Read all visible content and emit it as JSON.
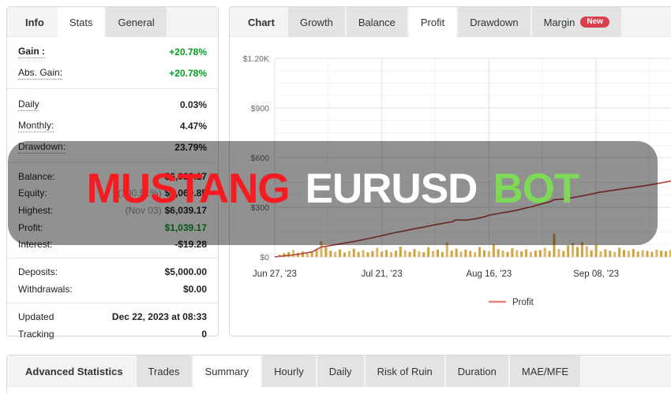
{
  "left_panel": {
    "tabs": [
      {
        "label": "Info",
        "state": "label"
      },
      {
        "label": "Stats",
        "state": "active"
      },
      {
        "label": "General",
        "state": "inactive"
      }
    ],
    "sections": [
      {
        "rows": [
          {
            "label": "Gain :",
            "value": "+20.78%",
            "value_color": "green",
            "underline": true,
            "bold_label": true
          },
          {
            "label": "Abs. Gain:",
            "value": "+20.78%",
            "value_color": "green",
            "underline": true
          }
        ]
      },
      {
        "rows": [
          {
            "label": "Daily",
            "value": "0.03%",
            "underline": true
          },
          {
            "label": "Monthly:",
            "value": "4.47%",
            "underline": true
          },
          {
            "label": "Drawdown:",
            "value": "23.79%",
            "underline": true
          }
        ]
      },
      {
        "rows": [
          {
            "label": "Balance:",
            "value": "$6,039.17"
          },
          {
            "label": "Equity:",
            "prefix": "(100.51%)",
            "value": "$6,069.85"
          },
          {
            "label": "Highest:",
            "prefix": "(Nov 03)",
            "value": "$6,039.17"
          },
          {
            "label": "Profit:",
            "value": "$1,039.17",
            "value_color": "green"
          },
          {
            "label": "Interest:",
            "value": "-$19.28"
          }
        ]
      },
      {
        "rows": [
          {
            "label": "Deposits:",
            "value": "$5,000.00"
          },
          {
            "label": "Withdrawals:",
            "value": "$0.00"
          }
        ]
      },
      {
        "rows": [
          {
            "label": "Updated",
            "value": "Dec 22, 2023 at 08:33"
          },
          {
            "label": "Tracking",
            "value": "0"
          }
        ]
      }
    ]
  },
  "chart_panel": {
    "tabs": [
      {
        "label": "Chart",
        "state": "label"
      },
      {
        "label": "Growth",
        "state": "inactive"
      },
      {
        "label": "Balance",
        "state": "inactive"
      },
      {
        "label": "Profit",
        "state": "active"
      },
      {
        "label": "Drawdown",
        "state": "inactive"
      },
      {
        "label": "Margin",
        "state": "inactive",
        "badge": "New"
      }
    ]
  },
  "chart_data": {
    "type": "line+bar",
    "title": "",
    "legend_position": "bottom-center",
    "grid": true,
    "ylim": [
      0,
      1200
    ],
    "y_major_step": 300,
    "y_minor_step": 75,
    "y_tick_labels": [
      "$0",
      "$300",
      "$600",
      "$900",
      "$1.20K"
    ],
    "x_tick_labels": [
      "Jun 27, '23",
      "Jul 21, '23",
      "Aug 16, '23",
      "Sep 08, '23"
    ],
    "x_tick_days": [
      0,
      23,
      46,
      69
    ],
    "x_total_days": 92,
    "legend": [
      {
        "name": "Profit",
        "color": "#e88078"
      }
    ],
    "series": [
      {
        "name": "Profit",
        "type": "line",
        "color": "#b5443c",
        "points": [
          [
            0,
            0
          ],
          [
            2,
            6
          ],
          [
            4,
            12
          ],
          [
            6,
            20
          ],
          [
            8,
            30
          ],
          [
            9,
            45
          ],
          [
            10,
            60
          ],
          [
            12,
            68
          ],
          [
            14,
            78
          ],
          [
            16,
            88
          ],
          [
            18,
            98
          ],
          [
            20,
            110
          ],
          [
            22,
            122
          ],
          [
            24,
            135
          ],
          [
            26,
            148
          ],
          [
            28,
            158
          ],
          [
            30,
            170
          ],
          [
            32,
            180
          ],
          [
            34,
            192
          ],
          [
            36,
            202
          ],
          [
            38,
            212
          ],
          [
            39,
            224
          ],
          [
            41,
            222
          ],
          [
            43,
            230
          ],
          [
            45,
            242
          ],
          [
            46,
            252
          ],
          [
            48,
            262
          ],
          [
            50,
            272
          ],
          [
            52,
            282
          ],
          [
            54,
            296
          ],
          [
            55,
            302
          ],
          [
            57,
            318
          ],
          [
            59,
            332
          ],
          [
            60,
            346
          ],
          [
            62,
            350
          ],
          [
            64,
            358
          ],
          [
            67,
            374
          ],
          [
            70,
            392
          ],
          [
            73,
            404
          ],
          [
            76,
            416
          ],
          [
            79,
            428
          ],
          [
            82,
            442
          ],
          [
            85,
            458
          ],
          [
            88,
            472
          ],
          [
            92,
            490
          ]
        ]
      },
      {
        "name": "Daily Profit",
        "type": "bar",
        "color": "#d2a23c",
        "values": [
          14,
          22,
          30,
          42,
          25,
          34,
          20,
          28,
          48,
          95,
          60,
          38,
          30,
          45,
          26,
          35,
          50,
          30,
          40,
          28,
          36,
          55,
          32,
          42,
          30,
          38,
          62,
          40,
          30,
          48,
          34,
          28,
          58,
          36,
          44,
          30,
          85,
          38,
          50,
          32,
          44,
          36,
          28,
          60,
          40,
          34,
          75,
          46,
          38,
          30,
          52,
          40,
          34,
          46,
          30,
          38,
          42,
          55,
          36,
          140,
          48,
          36,
          70,
          85,
          60,
          88,
          65,
          40,
          72,
          34,
          46,
          38,
          30,
          55,
          42,
          36,
          48,
          32,
          40,
          36,
          30,
          44,
          38,
          34,
          42,
          30,
          36,
          28,
          40,
          32,
          36
        ]
      }
    ]
  },
  "watermark": {
    "words": [
      {
        "text": "MUSTANG",
        "color": "#f51b20"
      },
      {
        "text": "EURUSD",
        "color": "#ffffff"
      },
      {
        "text": "BOT",
        "color": "#7ed957"
      }
    ]
  },
  "bottom_panel": {
    "tabs": [
      {
        "label": "Advanced Statistics",
        "state": "label"
      },
      {
        "label": "Trades",
        "state": "inactive"
      },
      {
        "label": "Summary",
        "state": "active"
      },
      {
        "label": "Hourly",
        "state": "inactive"
      },
      {
        "label": "Daily",
        "state": "inactive"
      },
      {
        "label": "Risk of Ruin",
        "state": "inactive"
      },
      {
        "label": "Duration",
        "state": "inactive"
      },
      {
        "label": "MAE/MFE",
        "state": "inactive"
      }
    ]
  },
  "colors": {
    "gain_green": "#00a01e",
    "badge_red": "#d8404d",
    "line_red": "#b5443c",
    "bar_gold": "#d2a23c",
    "grid_major": "#e2e2e2",
    "grid_minor": "#f3f3f3"
  }
}
